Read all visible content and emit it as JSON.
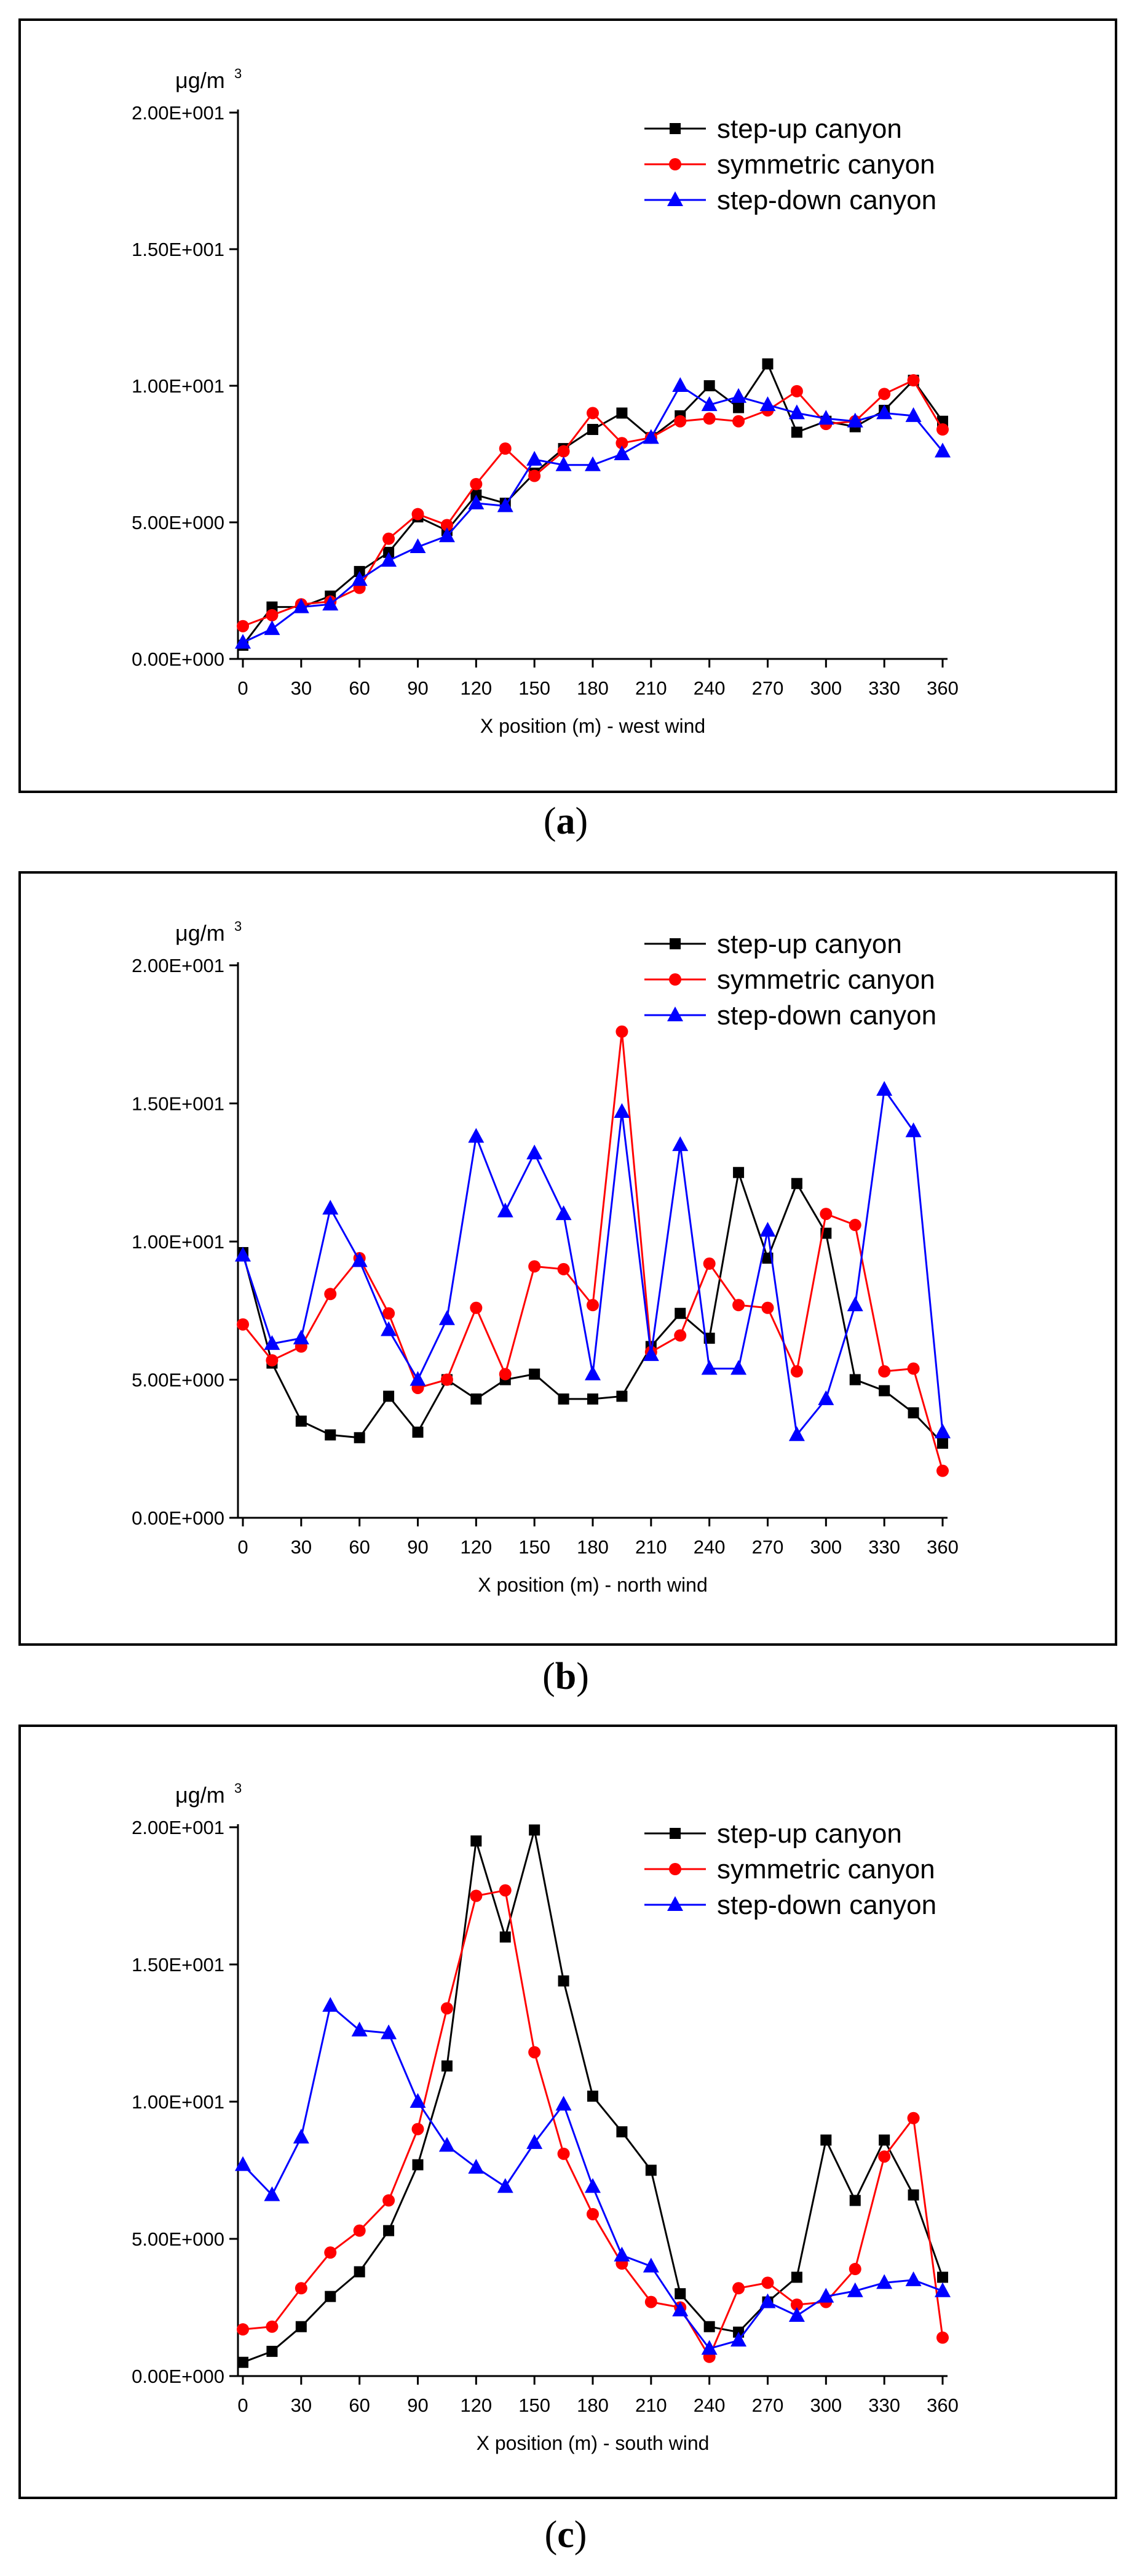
{
  "colors": {
    "step_up": "#000000",
    "symmetric": "#ff0000",
    "step_down": "#0000ff",
    "frame": "#000000"
  },
  "chart_data": [
    {
      "type": "line",
      "panel": "a",
      "caption_letter": "a",
      "unit": "μg/m",
      "unit_sup": "3",
      "xlabel": "X position (m) - west wind",
      "ylabel": "μg/m3",
      "ylim": [
        0,
        20
      ],
      "xlim": [
        0,
        360
      ],
      "x_ticks": [
        "0",
        "30",
        "60",
        "90",
        "120",
        "150",
        "180",
        "210",
        "240",
        "270",
        "300",
        "330",
        "360"
      ],
      "y_ticks": [
        "0.00E+000",
        "5.00E+000",
        "1.00E+001",
        "1.50E+001",
        "2.00E+001"
      ],
      "legend_position": "top-right",
      "x": [
        0,
        15,
        30,
        45,
        60,
        75,
        90,
        105,
        120,
        135,
        150,
        165,
        180,
        195,
        210,
        225,
        240,
        255,
        270,
        285,
        300,
        315,
        330,
        345,
        360
      ],
      "series": [
        {
          "name": "step-up canyon",
          "marker": "square",
          "color": "#000000",
          "values": [
            0.5,
            1.9,
            1.9,
            2.3,
            3.2,
            3.9,
            5.2,
            4.7,
            6.0,
            5.7,
            6.8,
            7.7,
            8.4,
            9.0,
            8.1,
            8.9,
            10.0,
            9.2,
            10.8,
            8.3,
            8.7,
            8.5,
            9.1,
            10.2,
            8.7
          ]
        },
        {
          "name": "symmetric canyon",
          "marker": "circle",
          "color": "#ff0000",
          "values": [
            1.2,
            1.6,
            2.0,
            2.1,
            2.6,
            4.4,
            5.3,
            4.9,
            6.4,
            7.7,
            6.7,
            7.6,
            9.0,
            7.9,
            8.1,
            8.7,
            8.8,
            8.7,
            9.1,
            9.8,
            8.6,
            8.7,
            9.7,
            10.2,
            8.4
          ]
        },
        {
          "name": "step-down canyon",
          "marker": "triangle",
          "color": "#0000ff",
          "values": [
            0.6,
            1.1,
            1.9,
            2.0,
            2.9,
            3.6,
            4.1,
            4.5,
            5.7,
            5.6,
            7.3,
            7.1,
            7.1,
            7.5,
            8.1,
            10.0,
            9.3,
            9.6,
            9.3,
            9.0,
            8.8,
            8.7,
            9.0,
            8.9,
            7.6
          ]
        }
      ]
    },
    {
      "type": "line",
      "panel": "b",
      "caption_letter": "b",
      "unit": "μg/m",
      "unit_sup": "3",
      "xlabel": "X position (m) - north wind",
      "ylabel": "μg/m3",
      "ylim": [
        0,
        20
      ],
      "xlim": [
        0,
        360
      ],
      "x_ticks": [
        "0",
        "30",
        "60",
        "90",
        "120",
        "150",
        "180",
        "210",
        "240",
        "270",
        "300",
        "330",
        "360"
      ],
      "y_ticks": [
        "0.00E+000",
        "5.00E+000",
        "1.00E+001",
        "1.50E+001",
        "2.00E+001"
      ],
      "legend_position": "top-right",
      "x": [
        0,
        15,
        30,
        45,
        60,
        75,
        90,
        105,
        120,
        135,
        150,
        165,
        180,
        195,
        210,
        225,
        240,
        255,
        270,
        285,
        300,
        315,
        330,
        345,
        360
      ],
      "series": [
        {
          "name": "step-up canyon",
          "marker": "square",
          "color": "#000000",
          "values": [
            9.6,
            5.6,
            3.5,
            3.0,
            2.9,
            4.4,
            3.1,
            5.0,
            4.3,
            5.0,
            5.2,
            4.3,
            4.3,
            4.4,
            6.2,
            7.4,
            6.5,
            12.5,
            9.4,
            12.1,
            10.3,
            5.0,
            4.6,
            3.8,
            2.7
          ]
        },
        {
          "name": "symmetric canyon",
          "marker": "circle",
          "color": "#ff0000",
          "values": [
            7.0,
            5.7,
            6.2,
            8.1,
            9.4,
            7.4,
            4.7,
            5.0,
            7.6,
            5.2,
            9.1,
            9.0,
            7.7,
            17.6,
            6.0,
            6.6,
            9.2,
            7.7,
            7.6,
            5.3,
            11.0,
            10.6,
            5.3,
            5.4,
            1.7
          ]
        },
        {
          "name": "step-down canyon",
          "marker": "triangle",
          "color": "#0000ff",
          "values": [
            9.5,
            6.3,
            6.5,
            11.2,
            9.3,
            6.8,
            5.0,
            7.2,
            13.8,
            11.1,
            13.2,
            11.0,
            5.2,
            14.7,
            5.9,
            13.5,
            5.4,
            5.4,
            10.4,
            3.0,
            4.3,
            7.7,
            15.5,
            14.0,
            3.1
          ]
        }
      ]
    },
    {
      "type": "line",
      "panel": "c",
      "caption_letter": "c",
      "unit": "μg/m",
      "unit_sup": "3",
      "xlabel": "X position (m) - south wind",
      "ylabel": "μg/m3",
      "ylim": [
        0,
        20
      ],
      "xlim": [
        0,
        360
      ],
      "x_ticks": [
        "0",
        "30",
        "60",
        "90",
        "120",
        "150",
        "180",
        "210",
        "240",
        "270",
        "300",
        "330",
        "360"
      ],
      "y_ticks": [
        "0.00E+000",
        "5.00E+000",
        "1.00E+001",
        "1.50E+001",
        "2.00E+001"
      ],
      "legend_position": "top-right",
      "x": [
        0,
        15,
        30,
        45,
        60,
        75,
        90,
        105,
        120,
        135,
        150,
        165,
        180,
        195,
        210,
        225,
        240,
        255,
        270,
        285,
        300,
        315,
        330,
        345,
        360
      ],
      "series": [
        {
          "name": "step-up canyon",
          "marker": "square",
          "color": "#000000",
          "values": [
            0.5,
            0.9,
            1.8,
            2.9,
            3.8,
            5.3,
            7.7,
            11.3,
            19.5,
            16.0,
            19.9,
            14.4,
            10.2,
            8.9,
            7.5,
            3.0,
            1.8,
            1.6,
            2.7,
            3.6,
            8.6,
            6.4,
            8.6,
            6.6,
            3.6
          ]
        },
        {
          "name": "symmetric canyon",
          "marker": "circle",
          "color": "#ff0000",
          "values": [
            1.7,
            1.8,
            3.2,
            4.5,
            5.3,
            6.4,
            9.0,
            13.4,
            17.5,
            17.7,
            11.8,
            8.1,
            5.9,
            4.1,
            2.7,
            2.5,
            0.7,
            3.2,
            3.4,
            2.6,
            2.7,
            3.9,
            8.0,
            9.4,
            1.4
          ]
        },
        {
          "name": "step-down canyon",
          "marker": "triangle",
          "color": "#0000ff",
          "values": [
            7.7,
            6.6,
            8.7,
            13.5,
            12.6,
            12.5,
            10.0,
            8.4,
            7.6,
            6.9,
            8.5,
            9.9,
            6.9,
            4.4,
            4.0,
            2.4,
            1.0,
            1.3,
            2.7,
            2.2,
            2.9,
            3.1,
            3.4,
            3.5,
            3.1
          ]
        }
      ]
    }
  ]
}
